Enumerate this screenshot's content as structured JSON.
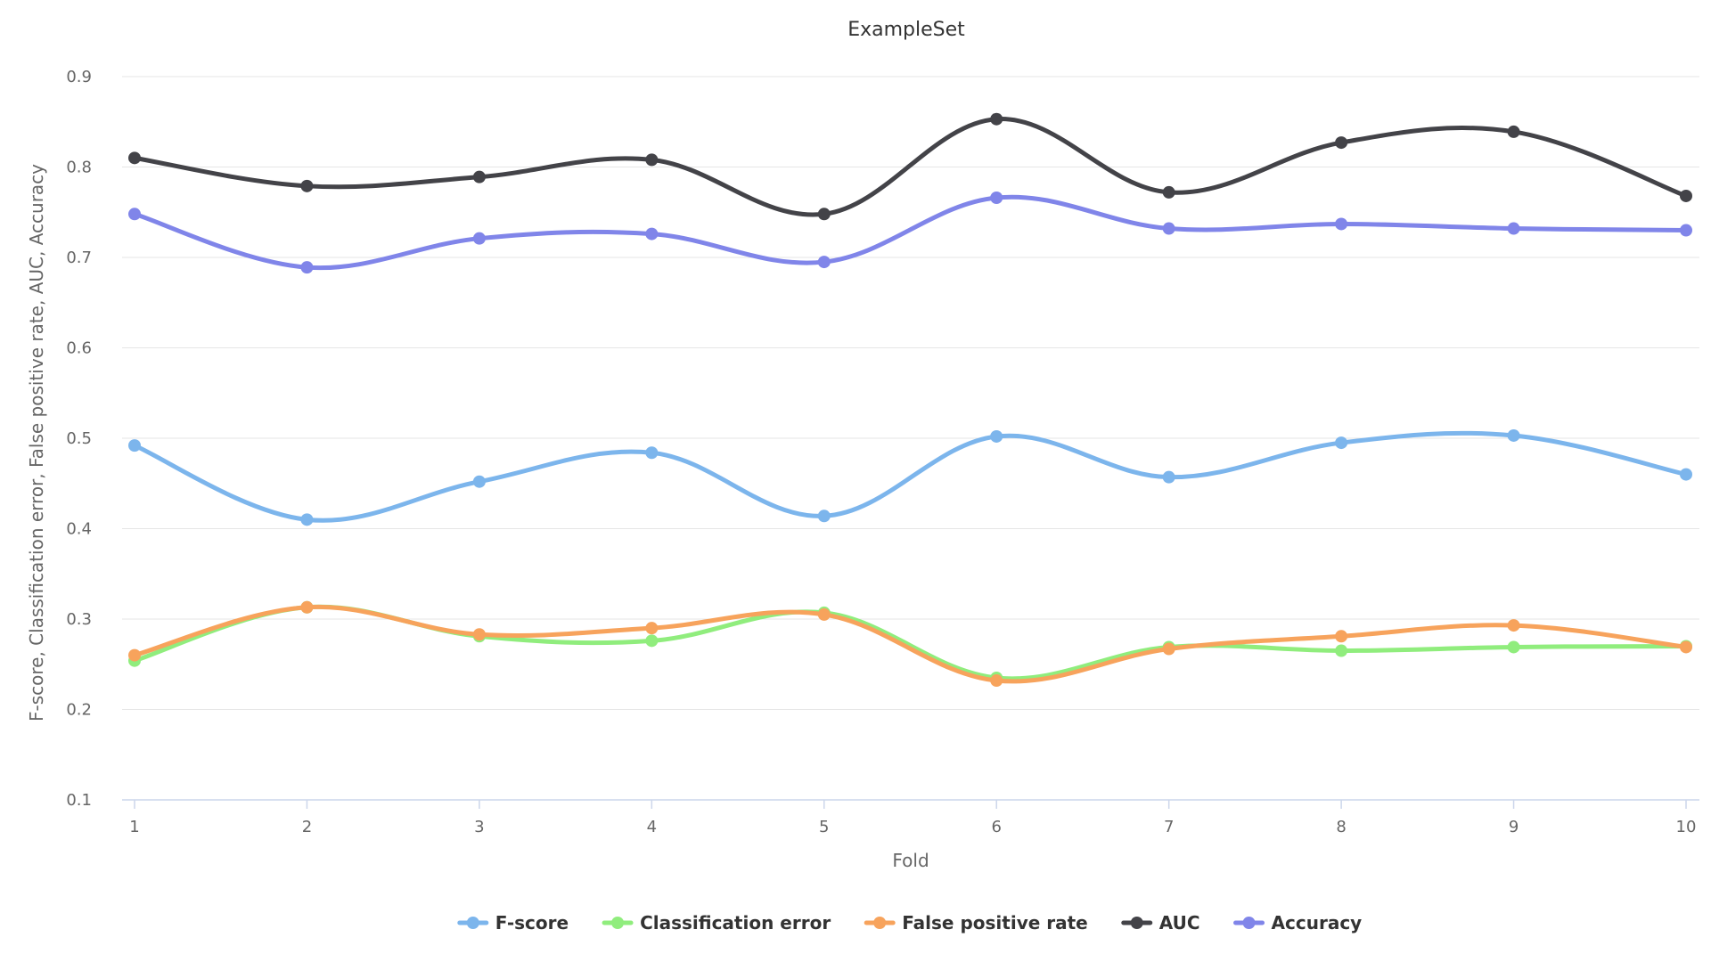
{
  "chart_data": {
    "type": "line",
    "title": "ExampleSet",
    "xlabel": "Fold",
    "ylabel": "F-score, Classification error, False positive rate, AUC, Accuracy",
    "x": [
      1,
      2,
      3,
      4,
      5,
      6,
      7,
      8,
      9,
      10
    ],
    "ylim": [
      0.1,
      0.9
    ],
    "yticks": [
      "0.9",
      "0.8",
      "0.7",
      "0.6",
      "0.5",
      "0.4",
      "0.3",
      "0.2",
      "0.1"
    ],
    "xticks": [
      "1",
      "2",
      "3",
      "4",
      "5",
      "6",
      "7",
      "8",
      "9",
      "10"
    ],
    "grid": true,
    "legend_position": "bottom",
    "series": [
      {
        "name": "F-score",
        "color": "#7cb5ec",
        "values": [
          0.492,
          0.41,
          0.452,
          0.484,
          0.414,
          0.502,
          0.457,
          0.495,
          0.503,
          0.46
        ]
      },
      {
        "name": "Classification error",
        "color": "#90ed7d",
        "values": [
          0.254,
          0.313,
          0.281,
          0.276,
          0.307,
          0.235,
          0.269,
          0.265,
          0.269,
          0.27
        ]
      },
      {
        "name": "False positive rate",
        "color": "#f7a35c",
        "values": [
          0.26,
          0.313,
          0.283,
          0.29,
          0.305,
          0.232,
          0.267,
          0.281,
          0.293,
          0.269
        ]
      },
      {
        "name": "AUC",
        "color": "#434348",
        "values": [
          0.81,
          0.779,
          0.789,
          0.808,
          0.748,
          0.853,
          0.772,
          0.827,
          0.839,
          0.768
        ]
      },
      {
        "name": "Accuracy",
        "color": "#8085e9",
        "values": [
          0.748,
          0.689,
          0.721,
          0.726,
          0.695,
          0.766,
          0.732,
          0.737,
          0.732,
          0.73
        ]
      }
    ]
  }
}
